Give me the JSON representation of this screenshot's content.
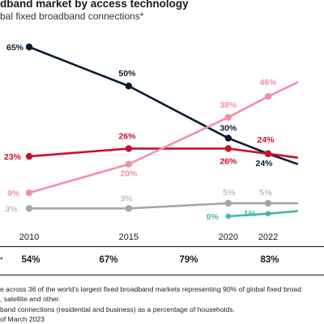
{
  "header": {
    "title": "dband market by access technology",
    "subtitle": "bal fixed broadband connections*"
  },
  "chart_data": {
    "type": "line",
    "title": "dband market by access technology",
    "subtitle": "bal fixed broadband connections*",
    "x": [
      2010,
      2015,
      2020,
      2022
    ],
    "x_tick_labels": [
      "2010",
      "2015",
      "2020",
      "2022"
    ],
    "ylim": [
      0,
      70
    ],
    "grid": false,
    "series": [
      {
        "key": "dark",
        "color": "#0b1a33",
        "points": [
          [
            2010,
            65
          ],
          [
            2015,
            50
          ],
          [
            2020,
            30
          ],
          [
            2022,
            24
          ],
          [
            2023.5,
            20
          ]
        ],
        "labels": [
          "65%",
          "50%",
          "30%",
          "24%",
          ""
        ]
      },
      {
        "key": "red",
        "color": "#c8102e",
        "points": [
          [
            2010,
            23
          ],
          [
            2015,
            26
          ],
          [
            2020,
            26
          ],
          [
            2022,
            24
          ],
          [
            2023.5,
            22.5
          ]
        ],
        "labels": [
          "23%",
          "26%",
          "26%",
          "24%",
          ""
        ]
      },
      {
        "key": "pink",
        "color": "#f48fa5",
        "points": [
          [
            2010,
            9
          ],
          [
            2015,
            20
          ],
          [
            2020,
            38
          ],
          [
            2022,
            46
          ],
          [
            2023.5,
            51.5
          ]
        ],
        "labels": [
          "9%",
          "20%",
          "38%",
          "46%",
          ""
        ]
      },
      {
        "key": "grey",
        "color": "#a6a6a6",
        "points": [
          [
            2010,
            3
          ],
          [
            2015,
            3
          ],
          [
            2020,
            5
          ],
          [
            2022,
            5
          ],
          [
            2023.5,
            5
          ]
        ],
        "labels": [
          "3%",
          "3%",
          "5%",
          "5%",
          ""
        ]
      },
      {
        "key": "teal",
        "color": "#3fb8a9",
        "points": [
          [
            2020,
            0
          ],
          [
            2022,
            1
          ],
          [
            2023.5,
            2
          ]
        ],
        "labels": [
          "0%",
          "1%",
          ""
        ]
      }
    ]
  },
  "penetration": {
    "label": "**",
    "values": [
      "54%",
      "67%",
      "79%",
      "83%"
    ]
  },
  "footnotes": [
    "e across 36 of the world’s largest fixed broadband markets representing 90% of global fixed broad",
    ", satellite and other.",
    "band connections (residential and business) as a percentage of households.",
    "of March 2023"
  ]
}
